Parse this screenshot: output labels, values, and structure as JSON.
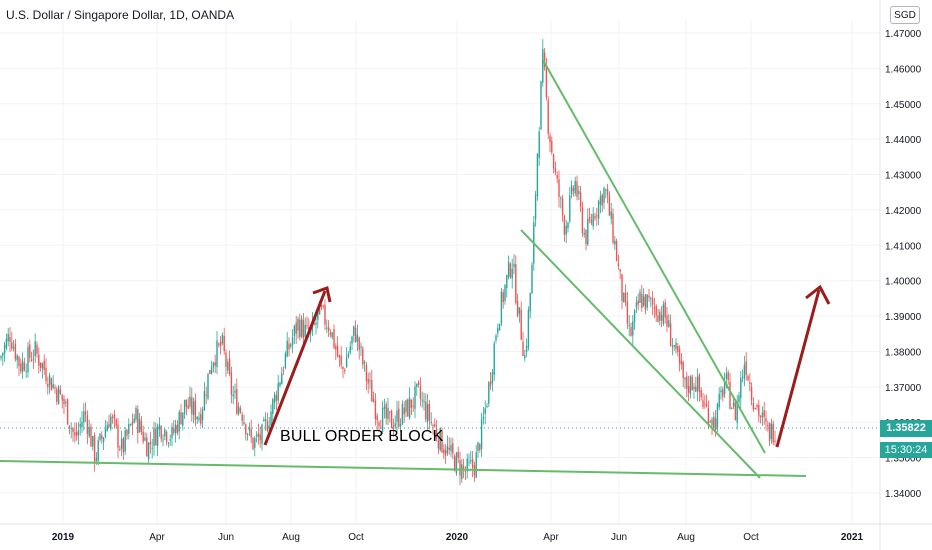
{
  "header": {
    "title": "U.S. Dollar / Singapore Dollar, 1D, OANDA",
    "currency_badge": "SGD"
  },
  "price_scale": {
    "current_price": "1.35822",
    "countdown": "15:30:24"
  },
  "annotation": "BULL ORDER BLOCK",
  "colors": {
    "up": "#26a69a",
    "down": "#ef5350",
    "trendline": "#66bb6a",
    "arrow": "#9c1c1c",
    "grid": "#f0f3fa",
    "text": "#131722"
  },
  "chart_data": {
    "type": "candlestick",
    "title": "U.S. Dollar / Singapore Dollar, 1D, OANDA",
    "xlabel": "",
    "ylabel": "",
    "x_ticks": [
      "2019",
      "Apr",
      "Jun",
      "Aug",
      "Oct",
      "2020",
      "Apr",
      "Jun",
      "Aug",
      "Oct",
      "2021"
    ],
    "y_ticks": [
      "1.47000",
      "1.46000",
      "1.45000",
      "1.44000",
      "1.43000",
      "1.42000",
      "1.41000",
      "1.40000",
      "1.39000",
      "1.38000",
      "1.37000",
      "1.36000",
      "1.35000",
      "1.34000"
    ],
    "ylim": [
      1.335,
      1.472
    ],
    "grid": true,
    "current_price": 1.35822,
    "price_path": [
      {
        "x": 0,
        "y": 1.378
      },
      {
        "x": 10,
        "y": 1.385
      },
      {
        "x": 20,
        "y": 1.376
      },
      {
        "x": 35,
        "y": 1.38
      },
      {
        "x": 50,
        "y": 1.372
      },
      {
        "x": 65,
        "y": 1.365
      },
      {
        "x": 75,
        "y": 1.355
      },
      {
        "x": 85,
        "y": 1.363
      },
      {
        "x": 95,
        "y": 1.35
      },
      {
        "x": 110,
        "y": 1.362
      },
      {
        "x": 122,
        "y": 1.352
      },
      {
        "x": 135,
        "y": 1.362
      },
      {
        "x": 148,
        "y": 1.353
      },
      {
        "x": 160,
        "y": 1.359
      },
      {
        "x": 172,
        "y": 1.356
      },
      {
        "x": 185,
        "y": 1.365
      },
      {
        "x": 200,
        "y": 1.362
      },
      {
        "x": 212,
        "y": 1.378
      },
      {
        "x": 222,
        "y": 1.382
      },
      {
        "x": 232,
        "y": 1.368
      },
      {
        "x": 242,
        "y": 1.363
      },
      {
        "x": 252,
        "y": 1.354
      },
      {
        "x": 262,
        "y": 1.356
      },
      {
        "x": 272,
        "y": 1.364
      },
      {
        "x": 285,
        "y": 1.378
      },
      {
        "x": 298,
        "y": 1.388
      },
      {
        "x": 310,
        "y": 1.384
      },
      {
        "x": 320,
        "y": 1.391
      },
      {
        "x": 330,
        "y": 1.387
      },
      {
        "x": 342,
        "y": 1.374
      },
      {
        "x": 355,
        "y": 1.386
      },
      {
        "x": 365,
        "y": 1.374
      },
      {
        "x": 378,
        "y": 1.362
      },
      {
        "x": 392,
        "y": 1.36
      },
      {
        "x": 405,
        "y": 1.363
      },
      {
        "x": 418,
        "y": 1.368
      },
      {
        "x": 428,
        "y": 1.362
      },
      {
        "x": 440,
        "y": 1.355
      },
      {
        "x": 452,
        "y": 1.35
      },
      {
        "x": 465,
        "y": 1.346
      },
      {
        "x": 475,
        "y": 1.348
      },
      {
        "x": 482,
        "y": 1.358
      },
      {
        "x": 490,
        "y": 1.372
      },
      {
        "x": 497,
        "y": 1.388
      },
      {
        "x": 505,
        "y": 1.398
      },
      {
        "x": 512,
        "y": 1.406
      },
      {
        "x": 518,
        "y": 1.392
      },
      {
        "x": 525,
        "y": 1.378
      },
      {
        "x": 532,
        "y": 1.403
      },
      {
        "x": 538,
        "y": 1.44
      },
      {
        "x": 543,
        "y": 1.463
      },
      {
        "x": 548,
        "y": 1.445
      },
      {
        "x": 555,
        "y": 1.43
      },
      {
        "x": 565,
        "y": 1.415
      },
      {
        "x": 575,
        "y": 1.428
      },
      {
        "x": 585,
        "y": 1.412
      },
      {
        "x": 595,
        "y": 1.42
      },
      {
        "x": 605,
        "y": 1.426
      },
      {
        "x": 615,
        "y": 1.41
      },
      {
        "x": 622,
        "y": 1.396
      },
      {
        "x": 630,
        "y": 1.384
      },
      {
        "x": 640,
        "y": 1.395
      },
      {
        "x": 652,
        "y": 1.393
      },
      {
        "x": 665,
        "y": 1.39
      },
      {
        "x": 675,
        "y": 1.38
      },
      {
        "x": 685,
        "y": 1.37
      },
      {
        "x": 695,
        "y": 1.372
      },
      {
        "x": 705,
        "y": 1.364
      },
      {
        "x": 715,
        "y": 1.36
      },
      {
        "x": 725,
        "y": 1.372
      },
      {
        "x": 735,
        "y": 1.362
      },
      {
        "x": 745,
        "y": 1.378
      },
      {
        "x": 752,
        "y": 1.368
      },
      {
        "x": 760,
        "y": 1.362
      },
      {
        "x": 768,
        "y": 1.357
      },
      {
        "x": 775,
        "y": 1.358
      }
    ]
  }
}
